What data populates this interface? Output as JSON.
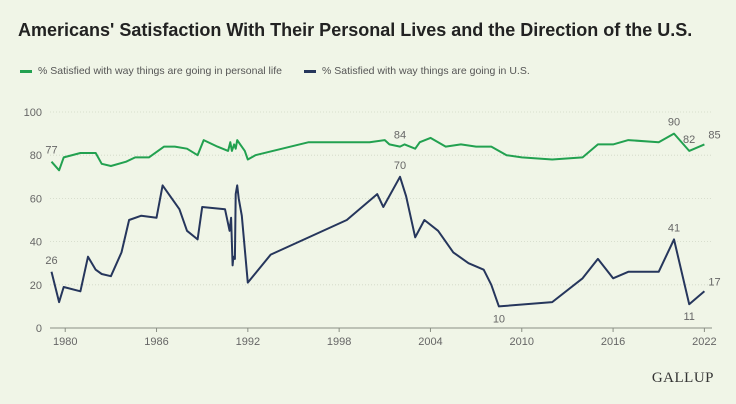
{
  "title": "Americans' Satisfaction With Their Personal Lives and the Direction of the U.S.",
  "brand": "GALLUP",
  "colors": {
    "background": "#f0f5e7",
    "personal": "#22a150",
    "us": "#26365c",
    "grid": "#cfd6c6"
  },
  "chart_data": {
    "type": "line",
    "title": "Americans' Satisfaction With Their Personal Lives and the Direction of the U.S.",
    "xlabel": "",
    "ylabel": "",
    "xlim": [
      1979,
      2022.5
    ],
    "ylim": [
      0,
      100
    ],
    "x_ticks": [
      "1980",
      "1986",
      "1992",
      "1998",
      "2004",
      "2010",
      "2016",
      "2022"
    ],
    "y_ticks": [
      "0",
      "20",
      "40",
      "60",
      "80",
      "100"
    ],
    "grid": true,
    "legend": "top-left",
    "series": [
      {
        "name": "% Satisfied with way things are going in personal life",
        "color": "#22a150",
        "points": [
          [
            1979.1,
            77
          ],
          [
            1979.6,
            73
          ],
          [
            1979.9,
            79
          ],
          [
            1981.0,
            81
          ],
          [
            1982.0,
            81
          ],
          [
            1982.4,
            76
          ],
          [
            1983.0,
            75
          ],
          [
            1984.0,
            77
          ],
          [
            1984.6,
            79
          ],
          [
            1985.5,
            79
          ],
          [
            1986.5,
            84
          ],
          [
            1987.2,
            84
          ],
          [
            1988.0,
            83
          ],
          [
            1988.7,
            80
          ],
          [
            1989.1,
            87
          ],
          [
            1990.0,
            84
          ],
          [
            1990.7,
            82
          ],
          [
            1990.85,
            86
          ],
          [
            1990.95,
            82
          ],
          [
            1991.1,
            85
          ],
          [
            1991.2,
            83
          ],
          [
            1991.3,
            87
          ],
          [
            1991.5,
            85
          ],
          [
            1991.8,
            82
          ],
          [
            1992.0,
            78
          ],
          [
            1992.5,
            80
          ],
          [
            1996.0,
            86
          ],
          [
            2000.0,
            86
          ],
          [
            2001.0,
            87
          ],
          [
            2001.3,
            85
          ],
          [
            2002.0,
            84
          ],
          [
            2002.3,
            85
          ],
          [
            2003.0,
            83
          ],
          [
            2003.3,
            86
          ],
          [
            2004.0,
            88
          ],
          [
            2005.0,
            84
          ],
          [
            2006.0,
            85
          ],
          [
            2007.0,
            84
          ],
          [
            2008.0,
            84
          ],
          [
            2009.0,
            80
          ],
          [
            2010.0,
            79
          ],
          [
            2012.0,
            78
          ],
          [
            2014.0,
            79
          ],
          [
            2015.0,
            85
          ],
          [
            2016.0,
            85
          ],
          [
            2017.0,
            87
          ],
          [
            2019.0,
            86
          ],
          [
            2020.0,
            90
          ],
          [
            2021.0,
            82
          ],
          [
            2022.0,
            85
          ]
        ],
        "labels": [
          {
            "x": 1979.1,
            "y": 77,
            "text": "77",
            "pos": "above"
          },
          {
            "x": 2002.0,
            "y": 84,
            "text": "84",
            "pos": "above"
          },
          {
            "x": 2020.0,
            "y": 90,
            "text": "90",
            "pos": "above"
          },
          {
            "x": 2021.0,
            "y": 82,
            "text": "82",
            "pos": "above"
          },
          {
            "x": 2022.0,
            "y": 85,
            "text": "85",
            "pos": "above-right"
          }
        ]
      },
      {
        "name": "% Satisfied with way things are going in U.S.",
        "color": "#26365c",
        "points": [
          [
            1979.1,
            26
          ],
          [
            1979.6,
            12
          ],
          [
            1979.9,
            19
          ],
          [
            1981.0,
            17
          ],
          [
            1981.5,
            33
          ],
          [
            1982.0,
            27
          ],
          [
            1982.4,
            25
          ],
          [
            1983.0,
            24
          ],
          [
            1983.7,
            35
          ],
          [
            1984.2,
            50
          ],
          [
            1985.0,
            52
          ],
          [
            1986.0,
            51
          ],
          [
            1986.4,
            66
          ],
          [
            1987.5,
            55
          ],
          [
            1988.0,
            45
          ],
          [
            1988.7,
            41
          ],
          [
            1989.0,
            56
          ],
          [
            1990.5,
            55
          ],
          [
            1990.8,
            45
          ],
          [
            1990.9,
            51
          ],
          [
            1991.0,
            29
          ],
          [
            1991.05,
            33
          ],
          [
            1991.15,
            32
          ],
          [
            1991.2,
            62
          ],
          [
            1991.3,
            66
          ],
          [
            1991.4,
            60
          ],
          [
            1991.6,
            52
          ],
          [
            1992.0,
            21
          ],
          [
            1993.5,
            34
          ],
          [
            1998.5,
            50
          ],
          [
            2000.5,
            62
          ],
          [
            2000.9,
            56
          ],
          [
            2002.0,
            70
          ],
          [
            2002.4,
            61
          ],
          [
            2003.0,
            42
          ],
          [
            2003.6,
            50
          ],
          [
            2004.5,
            45
          ],
          [
            2005.5,
            35
          ],
          [
            2006.5,
            30
          ],
          [
            2007.5,
            27
          ],
          [
            2008.0,
            20
          ],
          [
            2008.5,
            10
          ],
          [
            2012.0,
            12
          ],
          [
            2014.0,
            23
          ],
          [
            2015.0,
            32
          ],
          [
            2016.0,
            23
          ],
          [
            2017.0,
            26
          ],
          [
            2019.0,
            26
          ],
          [
            2020.0,
            41
          ],
          [
            2021.0,
            11
          ],
          [
            2022.0,
            17
          ]
        ],
        "labels": [
          {
            "x": 1979.1,
            "y": 26,
            "text": "26",
            "pos": "above"
          },
          {
            "x": 2002.0,
            "y": 70,
            "text": "70",
            "pos": "above"
          },
          {
            "x": 2008.5,
            "y": 10,
            "text": "10",
            "pos": "below"
          },
          {
            "x": 2020.0,
            "y": 41,
            "text": "41",
            "pos": "above"
          },
          {
            "x": 2021.0,
            "y": 11,
            "text": "11",
            "pos": "below"
          },
          {
            "x": 2022.0,
            "y": 17,
            "text": "17",
            "pos": "above-right"
          }
        ]
      }
    ]
  }
}
